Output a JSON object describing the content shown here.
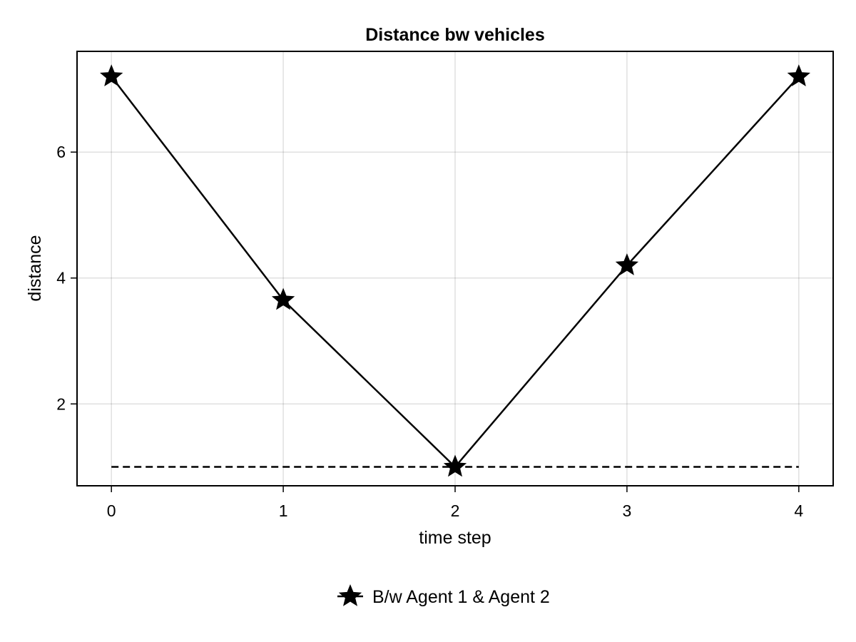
{
  "chart_data": {
    "type": "line",
    "title": "Distance bw vehicles",
    "xlabel": "time step",
    "ylabel": "distance",
    "x": [
      0,
      1,
      2,
      3,
      4
    ],
    "xlim": [
      -0.2,
      4.2
    ],
    "ylim": [
      0.7,
      7.6
    ],
    "xticks": [
      0,
      1,
      2,
      3,
      4
    ],
    "yticks": [
      2,
      4,
      6
    ],
    "grid": true,
    "legend_position": "bottom",
    "series": [
      {
        "name": "B/w Agent 1 & Agent 2",
        "values": [
          7.2,
          3.65,
          1.0,
          4.2,
          7.2
        ],
        "color": "#000000",
        "line_style": "solid",
        "marker": "star"
      }
    ],
    "reference_lines": [
      {
        "y": 1.0,
        "x_from": 0,
        "x_to": 4,
        "line_style": "dashed",
        "color": "#000000"
      }
    ]
  }
}
